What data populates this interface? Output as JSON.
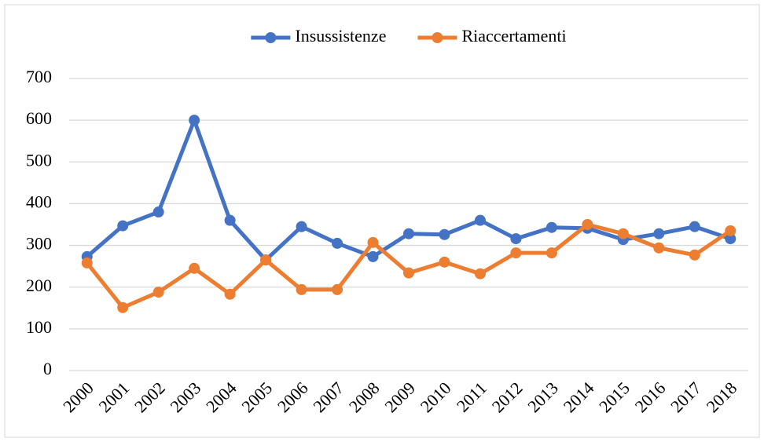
{
  "chart_data": {
    "type": "line",
    "categories": [
      "2000",
      "2001",
      "2002",
      "2003",
      "2004",
      "2005",
      "2006",
      "2007",
      "2008",
      "2009",
      "2010",
      "2011",
      "2012",
      "2013",
      "2014",
      "2015",
      "2016",
      "2017",
      "2018"
    ],
    "series": [
      {
        "name": "Insussistenze",
        "color": "#4472c4",
        "values": [
          273,
          347,
          380,
          600,
          360,
          265,
          345,
          305,
          273,
          328,
          326,
          360,
          316,
          343,
          341,
          314,
          328,
          345,
          316
        ]
      },
      {
        "name": "Riaccertamenti",
        "color": "#ed7d31",
        "values": [
          258,
          151,
          188,
          245,
          183,
          265,
          194,
          194,
          307,
          234,
          260,
          232,
          282,
          282,
          350,
          328,
          294,
          277,
          335
        ]
      }
    ],
    "ylim": [
      0,
      700
    ],
    "yticks": [
      0,
      100,
      200,
      300,
      400,
      500,
      600,
      700
    ],
    "grid": true,
    "legend": "top"
  }
}
